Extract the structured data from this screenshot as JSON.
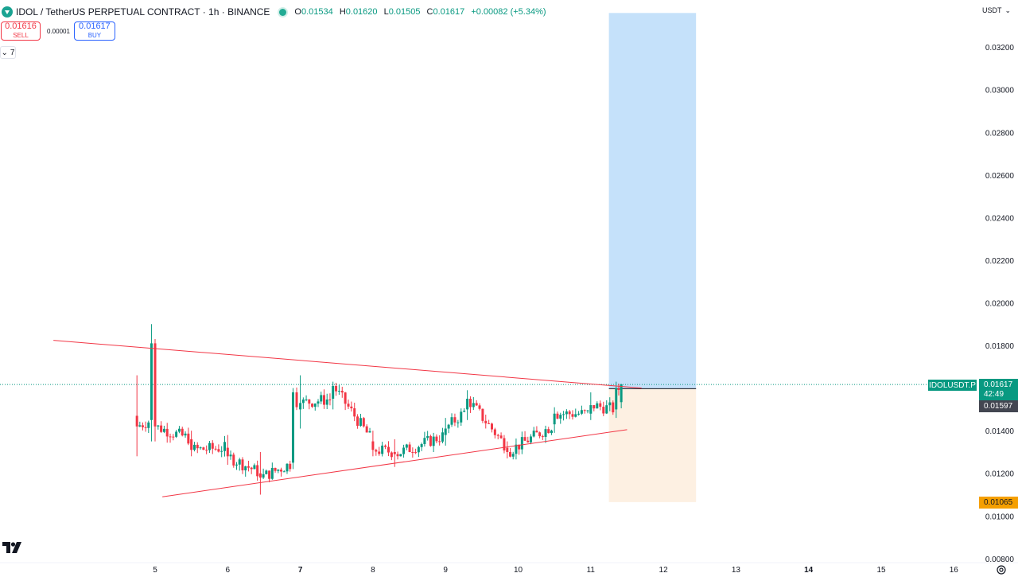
{
  "header": {
    "title": "IDOL / TetherUS PERPETUAL CONTRACT · 1h · BINANCE",
    "ohlc": [
      {
        "key": "O",
        "value": "0.01534"
      },
      {
        "key": "H",
        "value": "0.01620"
      },
      {
        "key": "L",
        "value": "0.01505"
      },
      {
        "key": "C",
        "value": "0.01617"
      },
      {
        "key": "",
        "value": "+0.00082 (+5.34%)"
      }
    ]
  },
  "trade": {
    "sell_price": "0.01616",
    "sell_label": "SELL",
    "spread": "0.00001",
    "buy_price": "0.01617",
    "buy_label": "BUY"
  },
  "indicators_toggle": {
    "count": "7"
  },
  "currency": "USDT",
  "price_tags": {
    "symbol": "IDOLUSDT.P",
    "last_price": "0.01617",
    "countdown": "42:49",
    "bid": "0.01597",
    "stop": "0.01065"
  },
  "colors": {
    "up": "#089981",
    "down": "#f23645",
    "profit_zone": "#c5e1fa",
    "loss_zone": "#fdf0e2",
    "trendline": "#f23645"
  },
  "icons": {
    "symbol": "idol-token-icon",
    "logo": "tradingview-logo-icon",
    "settings": "settings-icon"
  },
  "chart_data": {
    "type": "candlestick",
    "y_axis": {
      "ticks": [
        "0.03200",
        "0.03000",
        "0.02800",
        "0.02600",
        "0.02400",
        "0.02200",
        "0.02000",
        "0.01800",
        "0.01600",
        "0.01400",
        "0.01200",
        "0.01000",
        "0.00800"
      ],
      "min": 0.008,
      "max": 0.032
    },
    "x_axis": {
      "ticks": [
        "5",
        "6",
        "7",
        "8",
        "9",
        "10",
        "11",
        "12",
        "13",
        "14",
        "15",
        "16"
      ],
      "bold": [
        "7",
        "14"
      ]
    },
    "price_levels": {
      "last": 0.01617,
      "entry": 0.01597,
      "target": 0.0336,
      "stop": 0.01065
    },
    "trendlines": [
      {
        "name": "upper",
        "from": [
          3.6,
          0.01824
        ],
        "to": [
          11.7,
          0.016
        ]
      },
      {
        "name": "lower",
        "from": [
          5.1,
          0.0109
        ],
        "to": [
          11.5,
          0.01405
        ]
      }
    ],
    "position": {
      "type": "long",
      "from_x": 11.25,
      "to_x": 12.45,
      "entry": 0.01597,
      "target": 0.0336,
      "stop": 0.01065
    },
    "candles_summary": [
      {
        "x": 4.75,
        "o": 0.0147,
        "h": 0.0166,
        "l": 0.0128,
        "c": 0.0142
      },
      {
        "x": 4.95,
        "o": 0.0145,
        "h": 0.019,
        "l": 0.0135,
        "c": 0.0181
      },
      {
        "x": 5.0,
        "o": 0.0181,
        "h": 0.0183,
        "l": 0.0135,
        "c": 0.0142
      },
      {
        "x": 5.5,
        "o": 0.0136,
        "h": 0.014,
        "l": 0.0128,
        "c": 0.0131
      },
      {
        "x": 6.0,
        "o": 0.0132,
        "h": 0.0138,
        "l": 0.0124,
        "c": 0.0128
      },
      {
        "x": 6.45,
        "o": 0.012,
        "h": 0.013,
        "l": 0.011,
        "c": 0.0118
      },
      {
        "x": 6.9,
        "o": 0.0125,
        "h": 0.016,
        "l": 0.0122,
        "c": 0.0158
      },
      {
        "x": 7.0,
        "o": 0.015,
        "h": 0.0166,
        "l": 0.0141,
        "c": 0.0153
      },
      {
        "x": 7.45,
        "o": 0.0155,
        "h": 0.0163,
        "l": 0.015,
        "c": 0.0161
      },
      {
        "x": 8.0,
        "o": 0.0135,
        "h": 0.014,
        "l": 0.0128,
        "c": 0.0131
      },
      {
        "x": 8.3,
        "o": 0.013,
        "h": 0.0136,
        "l": 0.0123,
        "c": 0.0129
      },
      {
        "x": 9.0,
        "o": 0.0138,
        "h": 0.0146,
        "l": 0.0133,
        "c": 0.0141
      },
      {
        "x": 9.3,
        "o": 0.015,
        "h": 0.0159,
        "l": 0.0145,
        "c": 0.0155
      },
      {
        "x": 9.85,
        "o": 0.0132,
        "h": 0.0135,
        "l": 0.0127,
        "c": 0.013
      },
      {
        "x": 10.5,
        "o": 0.0143,
        "h": 0.0151,
        "l": 0.0139,
        "c": 0.0148
      },
      {
        "x": 11.0,
        "o": 0.0148,
        "h": 0.0158,
        "l": 0.0145,
        "c": 0.0152
      },
      {
        "x": 11.35,
        "o": 0.015,
        "h": 0.0163,
        "l": 0.0146,
        "c": 0.016
      },
      {
        "x": 11.42,
        "o": 0.01534,
        "h": 0.0162,
        "l": 0.01505,
        "c": 0.01617
      }
    ]
  }
}
